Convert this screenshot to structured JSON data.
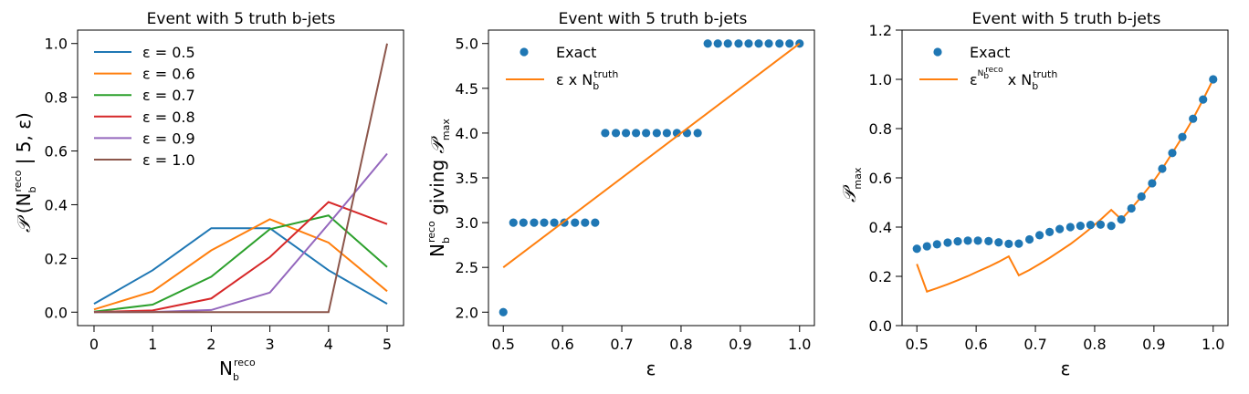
{
  "chart_data": [
    {
      "type": "line",
      "title": "Event with 5 truth b-jets",
      "xlabel": "N_b^reco",
      "ylabel": "P(N_b^reco | 5, ε)",
      "xlim": [
        -0.28,
        5.28
      ],
      "ylim": [
        -0.05,
        1.05
      ],
      "xticks": [
        "0",
        "1",
        "2",
        "3",
        "4",
        "5"
      ],
      "yticks": [
        "0.0",
        "0.2",
        "0.4",
        "0.6",
        "0.8",
        "1.0"
      ],
      "legend_position": "upper-left",
      "x": [
        0,
        1,
        2,
        3,
        4,
        5
      ],
      "series": [
        {
          "name": "ε = 0.5",
          "color": "#1f77b4",
          "values": [
            0.031,
            0.156,
            0.3125,
            0.3125,
            0.156,
            0.031
          ]
        },
        {
          "name": "ε = 0.6",
          "color": "#ff7f0e",
          "values": [
            0.01,
            0.077,
            0.23,
            0.346,
            0.259,
            0.078
          ]
        },
        {
          "name": "ε = 0.7",
          "color": "#2ca02c",
          "values": [
            0.002,
            0.028,
            0.132,
            0.309,
            0.36,
            0.168
          ]
        },
        {
          "name": "ε = 0.8",
          "color": "#d62728",
          "values": [
            0.0003,
            0.0064,
            0.051,
            0.205,
            0.41,
            0.328
          ]
        },
        {
          "name": "ε = 0.9",
          "color": "#9467bd",
          "values": [
            0.0,
            0.0005,
            0.008,
            0.073,
            0.328,
            0.59
          ]
        },
        {
          "name": "ε = 1.0",
          "color": "#8c564b",
          "values": [
            0.0,
            0.0,
            0.0,
            0.0,
            0.0,
            1.0
          ]
        }
      ]
    },
    {
      "type": "scatter",
      "title": "Event with 5 truth b-jets",
      "xlabel": "ε",
      "ylabel": "N_b^reco giving P_max",
      "xlim": [
        0.475,
        1.025
      ],
      "ylim": [
        1.85,
        5.15
      ],
      "xticks": [
        "0.5",
        "0.6",
        "0.7",
        "0.8",
        "0.9",
        "1.0"
      ],
      "yticks": [
        "2.0",
        "2.5",
        "3.0",
        "3.5",
        "4.0",
        "4.5",
        "5.0"
      ],
      "legend_position": "upper-left",
      "series": [
        {
          "name": "Exact",
          "kind": "scatter",
          "color": "#1f77b4",
          "x": [
            0.5,
            0.517,
            0.534,
            0.552,
            0.569,
            0.586,
            0.603,
            0.621,
            0.638,
            0.655,
            0.672,
            0.69,
            0.707,
            0.724,
            0.741,
            0.759,
            0.776,
            0.793,
            0.81,
            0.828,
            0.845,
            0.862,
            0.879,
            0.897,
            0.914,
            0.931,
            0.948,
            0.966,
            0.983,
            1.0
          ],
          "y": [
            2,
            3,
            3,
            3,
            3,
            3,
            3,
            3,
            3,
            3,
            4,
            4,
            4,
            4,
            4,
            4,
            4,
            4,
            4,
            4,
            5,
            5,
            5,
            5,
            5,
            5,
            5,
            5,
            5,
            5
          ]
        },
        {
          "name": "ε x N_b^truth",
          "kind": "line",
          "color": "#ff7f0e",
          "x": [
            0.5,
            1.0
          ],
          "y": [
            2.5,
            5.0
          ]
        }
      ]
    },
    {
      "type": "scatter",
      "title": "Event with 5 truth b-jets",
      "xlabel": "ε",
      "ylabel": "P_max",
      "xlim": [
        0.475,
        1.025
      ],
      "ylim": [
        0.0,
        1.2
      ],
      "xticks": [
        "0.5",
        "0.6",
        "0.7",
        "0.8",
        "0.9",
        "1.0"
      ],
      "yticks": [
        "0.0",
        "0.2",
        "0.4",
        "0.6",
        "0.8",
        "1.0",
        "1.2"
      ],
      "legend_position": "upper-left",
      "series": [
        {
          "name": "Exact",
          "kind": "scatter",
          "color": "#1f77b4",
          "x": [
            0.5,
            0.517,
            0.534,
            0.552,
            0.569,
            0.586,
            0.603,
            0.621,
            0.638,
            0.655,
            0.672,
            0.69,
            0.707,
            0.724,
            0.741,
            0.759,
            0.776,
            0.793,
            0.81,
            0.828,
            0.845,
            0.862,
            0.879,
            0.897,
            0.914,
            0.931,
            0.948,
            0.966,
            0.983,
            1.0
          ],
          "y": [
            0.312,
            0.322,
            0.33,
            0.337,
            0.342,
            0.345,
            0.345,
            0.343,
            0.338,
            0.332,
            0.333,
            0.35,
            0.367,
            0.38,
            0.392,
            0.4,
            0.405,
            0.409,
            0.41,
            0.405,
            0.431,
            0.476,
            0.524,
            0.578,
            0.637,
            0.701,
            0.766,
            0.84,
            0.918,
            1.0
          ]
        },
        {
          "name": "ε^(N_b^reco) x N_b^truth",
          "kind": "line",
          "color": "#ff7f0e",
          "x": [
            0.5,
            0.517,
            0.534,
            0.552,
            0.569,
            0.586,
            0.603,
            0.621,
            0.638,
            0.655,
            0.672,
            0.69,
            0.707,
            0.724,
            0.741,
            0.759,
            0.776,
            0.793,
            0.81,
            0.828,
            0.845,
            0.862,
            0.879,
            0.897,
            0.914,
            0.931,
            0.948,
            0.966,
            0.983,
            1.0
          ],
          "y": [
            0.25,
            0.138,
            0.152,
            0.168,
            0.184,
            0.201,
            0.22,
            0.239,
            0.259,
            0.281,
            0.204,
            0.226,
            0.25,
            0.275,
            0.302,
            0.331,
            0.362,
            0.395,
            0.43,
            0.47,
            0.431,
            0.476,
            0.524,
            0.578,
            0.637,
            0.701,
            0.766,
            0.84,
            0.918,
            1.0
          ]
        }
      ]
    }
  ]
}
